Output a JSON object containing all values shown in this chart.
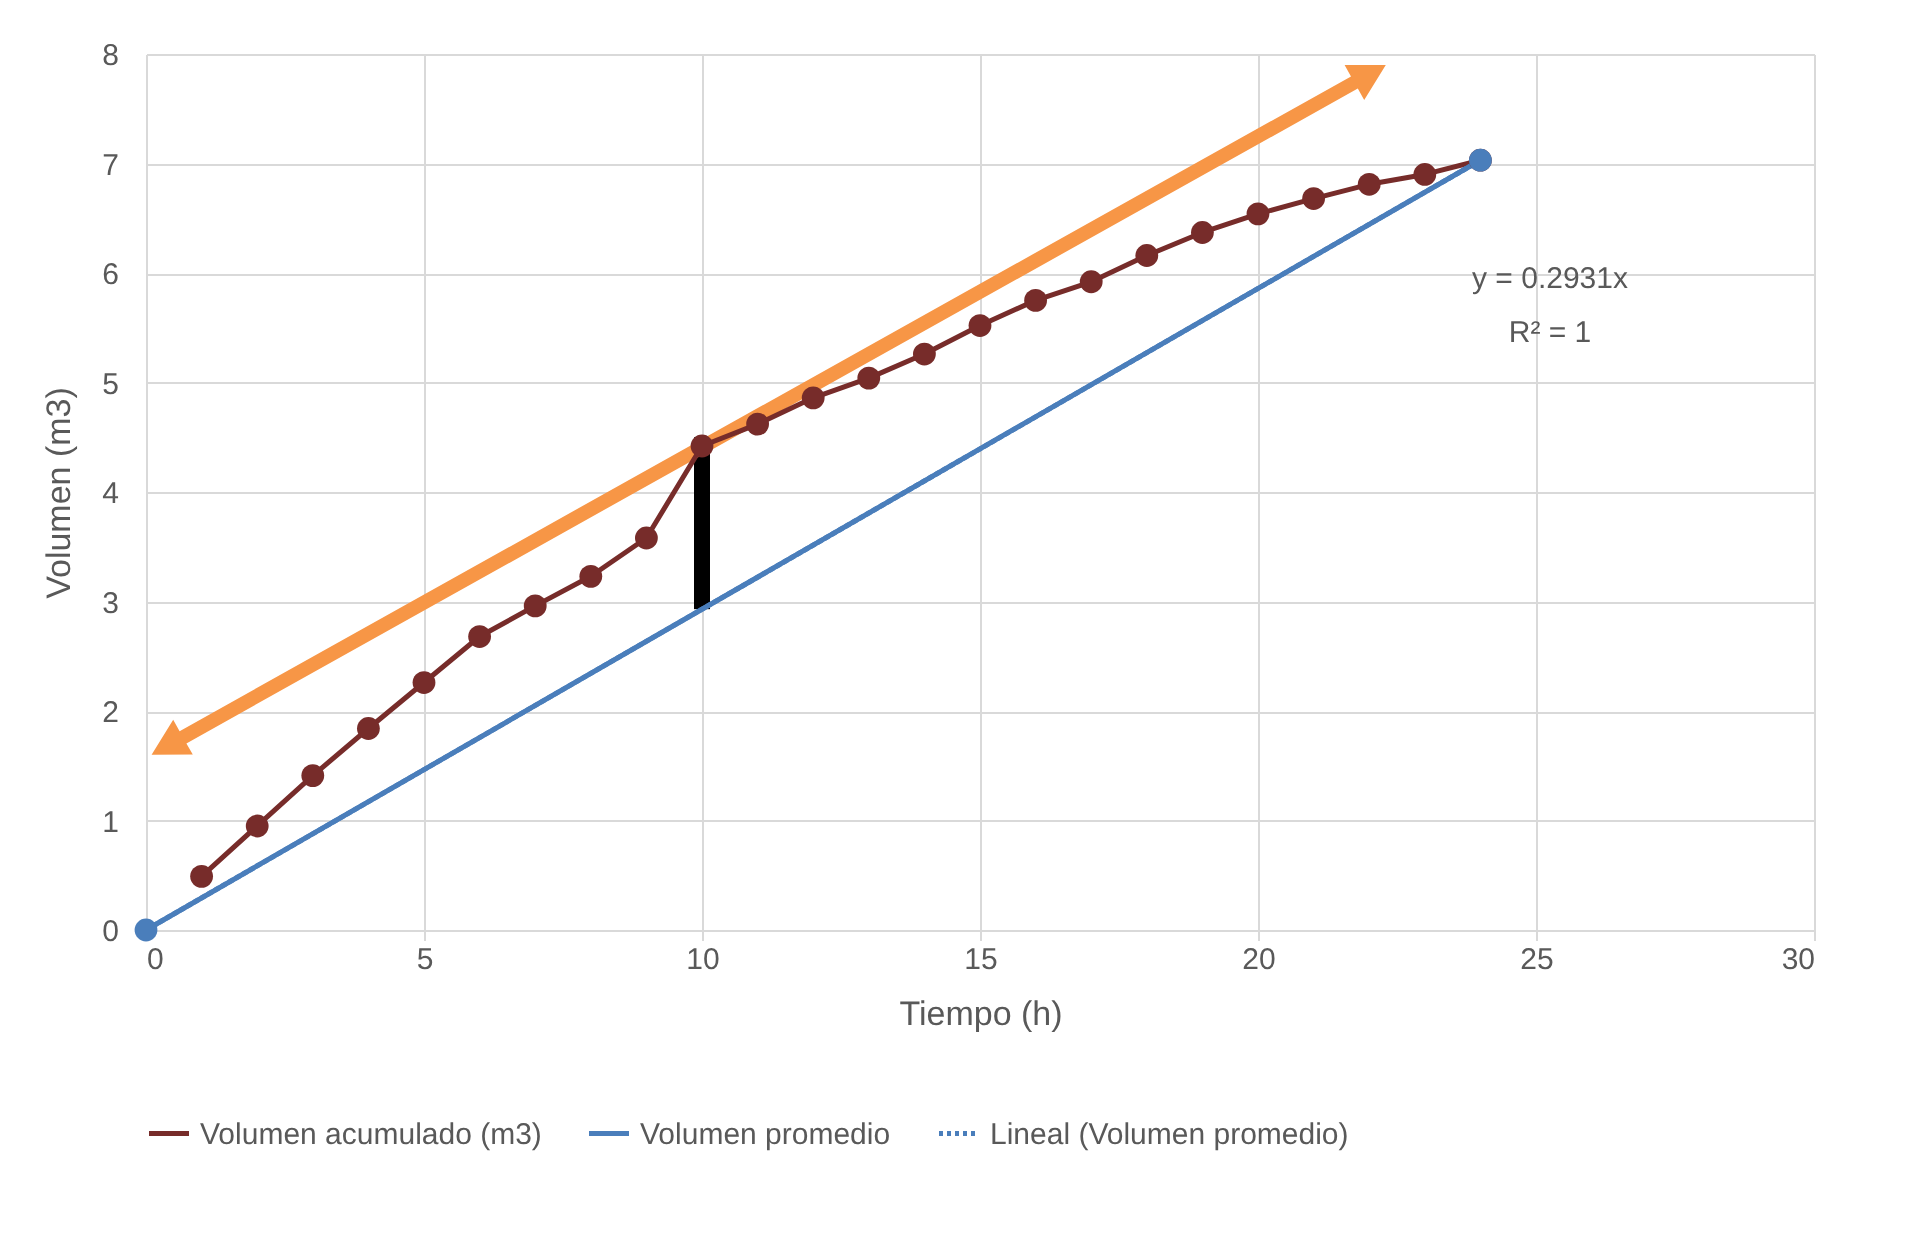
{
  "chart_data": {
    "type": "line",
    "xlabel": "Tiempo (h)",
    "ylabel": "Volumen (m3)",
    "xlim": [
      0,
      30
    ],
    "xticks": [
      0,
      5,
      10,
      15,
      20,
      25,
      30
    ],
    "ylim": [
      0,
      8
    ],
    "yticks": [
      0,
      1,
      2,
      3,
      4,
      5,
      6,
      7,
      8
    ],
    "grid": true,
    "legend": "bottom",
    "marker": "circle",
    "series": [
      {
        "name": "Volumen acumulado (m3)",
        "color": "#772c2a",
        "x": [
          1,
          2,
          3,
          4,
          5,
          6,
          7,
          8,
          9,
          10,
          11,
          12,
          13,
          14,
          15,
          16,
          17,
          18,
          19,
          20,
          21,
          22,
          23,
          24
        ],
        "line_style": "solid",
        "values": [
          0.49,
          0.95,
          1.41,
          1.84,
          2.26,
          2.68,
          2.96,
          3.23,
          3.58,
          4.42,
          4.62,
          4.86,
          5.04,
          5.26,
          5.52,
          5.75,
          5.92,
          6.16,
          6.37,
          6.54,
          6.68,
          6.81,
          6.9,
          7.03
        ]
      },
      {
        "name": "Volumen promedio",
        "color": "#4a7ebb",
        "x": [
          0,
          24
        ],
        "line_style": "solid",
        "values": [
          0,
          7.03
        ]
      },
      {
        "name": "Lineal (Volumen promedio)",
        "color": "#4a7ebb",
        "x": [
          0,
          24
        ],
        "values": [
          0,
          7.03
        ],
        "marker": "none",
        "line_style": "dotted"
      }
    ],
    "annotations": [
      "y = 0.2931x",
      "R² = 1"
    ]
  }
}
